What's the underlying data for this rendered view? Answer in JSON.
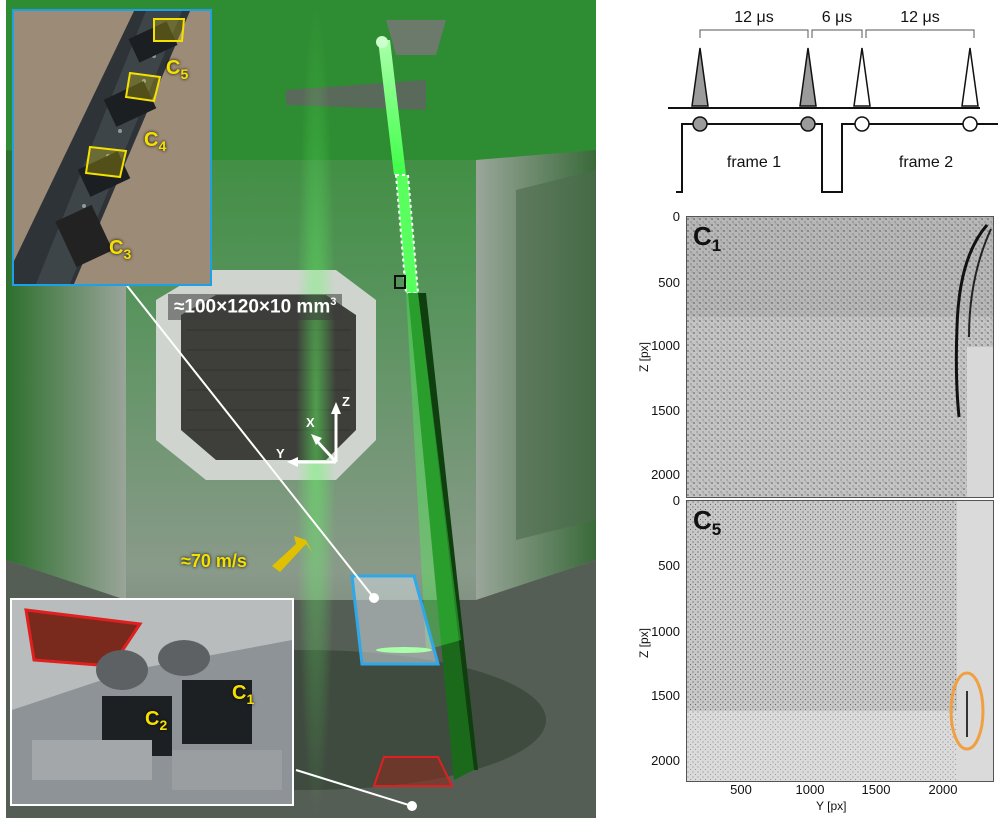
{
  "photo": {
    "camera_top_labels": [
      "C5",
      "C4",
      "C3"
    ],
    "camera_bottom_labels": [
      "C2",
      "C1"
    ],
    "volume_label": "≈100×120×10 mm",
    "volume_exponent": "3",
    "speed_label": "≈70 m/s",
    "axes": {
      "x": "X",
      "y": "Y",
      "z": "Z"
    },
    "colors": {
      "laser": "#39ff3c",
      "inset_top_border": "#1ea0e6",
      "inset_bottom_border": "#ffffff",
      "camera_fov": "#f5e000",
      "red_marker": "#e02020",
      "blue_marker": "#2fa8ea"
    }
  },
  "timing": {
    "intervals": [
      "12 μs",
      "6 μs",
      "12 μs"
    ],
    "frames": [
      "frame 1",
      "frame 2"
    ]
  },
  "panels": [
    {
      "name": "C",
      "sub": "1",
      "y_ticks": [
        "0",
        "500",
        "1000",
        "1500",
        "2000"
      ],
      "y_label": "Z [px]"
    },
    {
      "name": "C",
      "sub": "5",
      "y_ticks": [
        "0",
        "500",
        "1000",
        "1500",
        "2000"
      ],
      "y_label": "Z [px]",
      "x_ticks": [
        "500",
        "1000",
        "1500",
        "2000"
      ],
      "x_label": "Y [px]"
    }
  ],
  "highlight_color": "#f0a040"
}
